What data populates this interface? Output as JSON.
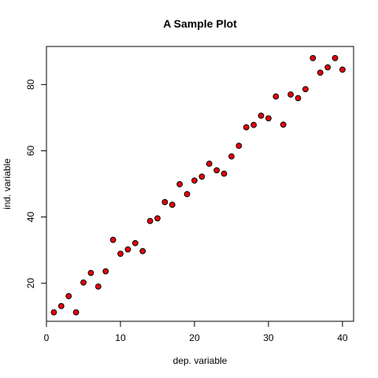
{
  "chart_data": {
    "type": "scatter",
    "title": "A Sample Plot",
    "xlabel": "dep. variable",
    "ylabel": "ind. variable",
    "xlim": [
      0,
      41.5
    ],
    "ylim": [
      8.5,
      91.5
    ],
    "xticks": [
      0,
      10,
      20,
      30,
      40
    ],
    "yticks": [
      20,
      40,
      60,
      80
    ],
    "point_fill": "#e8000b",
    "point_stroke": "#000000",
    "grid": false,
    "legend": "none",
    "points": [
      {
        "x": 1,
        "y": 11.2
      },
      {
        "x": 2,
        "y": 13.1
      },
      {
        "x": 3,
        "y": 16.1
      },
      {
        "x": 4,
        "y": 11.2
      },
      {
        "x": 5,
        "y": 20.2
      },
      {
        "x": 6,
        "y": 23.1
      },
      {
        "x": 7,
        "y": 19.0
      },
      {
        "x": 8,
        "y": 23.6
      },
      {
        "x": 9,
        "y": 33.1
      },
      {
        "x": 10,
        "y": 28.9
      },
      {
        "x": 11,
        "y": 30.2
      },
      {
        "x": 12,
        "y": 32.1
      },
      {
        "x": 13,
        "y": 29.7
      },
      {
        "x": 14,
        "y": 38.8
      },
      {
        "x": 15,
        "y": 39.6
      },
      {
        "x": 16,
        "y": 44.5
      },
      {
        "x": 17,
        "y": 43.7
      },
      {
        "x": 18,
        "y": 49.9
      },
      {
        "x": 19,
        "y": 46.9
      },
      {
        "x": 20,
        "y": 51.0
      },
      {
        "x": 21,
        "y": 52.2
      },
      {
        "x": 22,
        "y": 56.1
      },
      {
        "x": 23,
        "y": 54.1
      },
      {
        "x": 24,
        "y": 53.1
      },
      {
        "x": 25,
        "y": 58.3
      },
      {
        "x": 26,
        "y": 61.5
      },
      {
        "x": 27,
        "y": 67.1
      },
      {
        "x": 28,
        "y": 67.8
      },
      {
        "x": 29,
        "y": 70.6
      },
      {
        "x": 30,
        "y": 69.8
      },
      {
        "x": 31,
        "y": 76.4
      },
      {
        "x": 32,
        "y": 67.9
      },
      {
        "x": 33,
        "y": 77.0
      },
      {
        "x": 34,
        "y": 75.9
      },
      {
        "x": 35,
        "y": 78.6
      },
      {
        "x": 36,
        "y": 88.0
      },
      {
        "x": 37,
        "y": 83.6
      },
      {
        "x": 38,
        "y": 85.2
      },
      {
        "x": 39,
        "y": 88.0
      },
      {
        "x": 40,
        "y": 84.5
      }
    ]
  }
}
